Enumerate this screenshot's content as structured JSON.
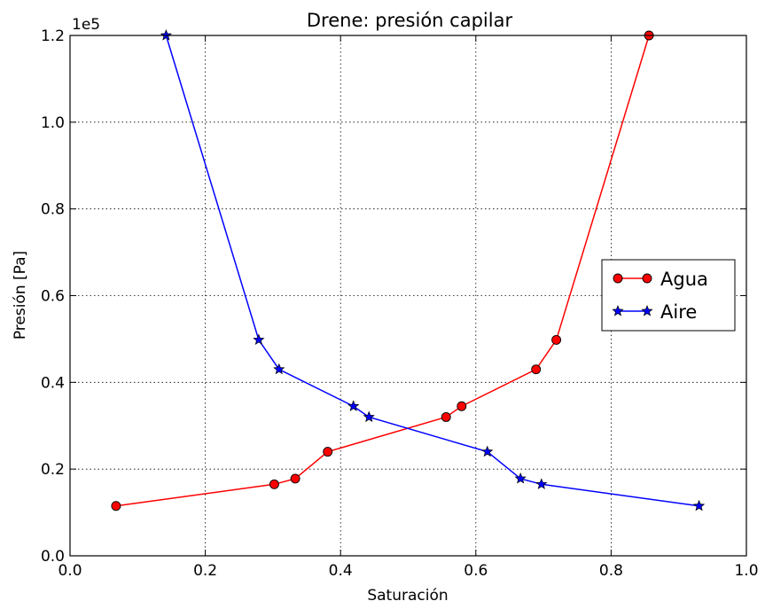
{
  "chart_data": {
    "type": "line",
    "title": "Drene: presión capilar",
    "xlabel": "Saturación",
    "ylabel": "Presión [Pa]",
    "xlim": [
      0.0,
      1.0
    ],
    "ylim": [
      0,
      120000
    ],
    "y_offset_label": "1e5",
    "x_ticks": [
      0.0,
      0.2,
      0.4,
      0.6,
      0.8,
      1.0
    ],
    "x_tick_labels": [
      "0.0",
      "0.2",
      "0.4",
      "0.6",
      "0.8",
      "1.0"
    ],
    "y_ticks": [
      0,
      20000,
      40000,
      60000,
      80000,
      100000,
      120000
    ],
    "y_tick_labels": [
      "0.0",
      "0.2",
      "0.4",
      "0.6",
      "0.8",
      "1.0",
      "1.2"
    ],
    "grid": true,
    "legend_position": "center-right",
    "series": [
      {
        "name": "Agua",
        "color": "#ff0000",
        "marker": "circle",
        "points": [
          [
            0.068,
            11500
          ],
          [
            0.302,
            16500
          ],
          [
            0.333,
            17800
          ],
          [
            0.381,
            24000
          ],
          [
            0.556,
            32000
          ],
          [
            0.579,
            34500
          ],
          [
            0.689,
            43000
          ],
          [
            0.719,
            49800
          ],
          [
            0.856,
            120000
          ]
        ]
      },
      {
        "name": "Aire",
        "color": "#0000ff",
        "marker": "star",
        "points": [
          [
            0.142,
            120000
          ],
          [
            0.279,
            49800
          ],
          [
            0.309,
            43000
          ],
          [
            0.419,
            34500
          ],
          [
            0.442,
            32000
          ],
          [
            0.617,
            24000
          ],
          [
            0.666,
            17800
          ],
          [
            0.697,
            16500
          ],
          [
            0.93,
            11500
          ]
        ]
      }
    ]
  }
}
